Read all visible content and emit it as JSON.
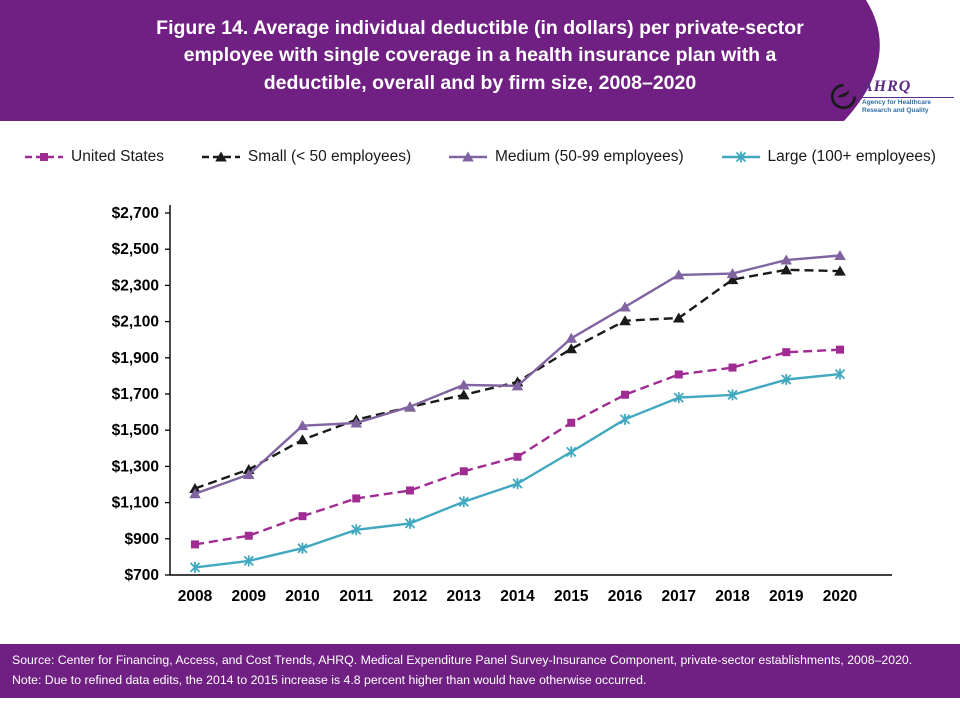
{
  "colors": {
    "banner": "#702082",
    "axis": "#000000"
  },
  "header": {
    "title_lines": [
      "Figure 14. Average individual deductible (in dollars) per private-sector",
      "employee with single coverage in a health insurance plan with a",
      "deductible, overall and by firm size, 2008–2020"
    ],
    "logo": {
      "org": "AHRQ",
      "tagline": "Agency for Healthcare Research and Quality"
    }
  },
  "chart_data": {
    "type": "line",
    "title": "Figure 14. Average individual deductible (in dollars) per private-sector employee with single coverage in a health insurance plan with a deductible, overall and by firm size, 2008–2020",
    "x": [
      2008,
      2009,
      2010,
      2011,
      2012,
      2013,
      2014,
      2015,
      2016,
      2017,
      2018,
      2019,
      2020
    ],
    "xlabel": "",
    "ylabel": "",
    "ylim": [
      700,
      2700
    ],
    "ytick_step": 200,
    "ytick_format": "$#,##0",
    "grid": false,
    "legend_position": "top",
    "series": [
      {
        "name": "United States",
        "color": "#A02B93",
        "style": "dashed",
        "marker": "square",
        "values": [
          869,
          917,
          1025,
          1123,
          1167,
          1273,
          1353,
          1541,
          1696,
          1808,
          1846,
          1931,
          1945
        ]
      },
      {
        "name": "Small (< 50 employees)",
        "color": "#1a1a1a",
        "style": "dashed",
        "marker": "triangle",
        "values": [
          1178,
          1283,
          1447,
          1558,
          1628,
          1695,
          1767,
          1950,
          2105,
          2120,
          2332,
          2386,
          2379
        ]
      },
      {
        "name": "Medium (50-99 employees)",
        "color": "#8064A2",
        "style": "solid",
        "marker": "triangle",
        "values": [
          1149,
          1255,
          1525,
          1540,
          1630,
          1750,
          1745,
          2008,
          2181,
          2358,
          2365,
          2440,
          2465
        ]
      },
      {
        "name": "Large (100+ employees)",
        "color": "#41A8BF",
        "style": "solid",
        "marker": "star",
        "values": [
          742,
          778,
          848,
          950,
          985,
          1105,
          1205,
          1380,
          1560,
          1680,
          1695,
          1780,
          1810
        ]
      }
    ]
  },
  "footer": {
    "source": "Source: Center for Financing, Access, and Cost Trends, AHRQ. Medical Expenditure Panel Survey-Insurance Component, private-sector establishments, 2008–2020.",
    "note": "Note: Due to refined data edits, the 2014 to 2015 increase is 4.8 percent higher than would have otherwise occurred."
  }
}
